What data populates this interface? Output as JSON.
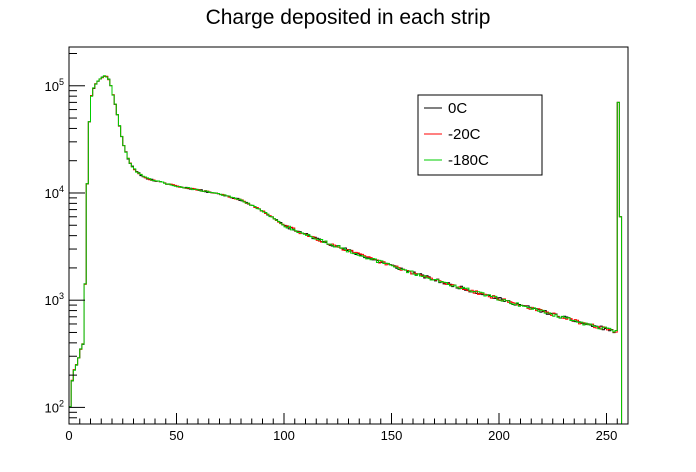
{
  "chart_data": {
    "type": "line",
    "title": "Charge deposited in each strip",
    "xlabel": "",
    "ylabel": "",
    "xlim": [
      0,
      260
    ],
    "ylim": [
      70,
      230000
    ],
    "yscale": "log",
    "grid": false,
    "legend_position": "top-right",
    "x_ticks": [
      0,
      50,
      100,
      150,
      200,
      250
    ],
    "y_ticks": [
      {
        "value": 100,
        "base": "10",
        "exp": "2"
      },
      {
        "value": 1000,
        "base": "10",
        "exp": "3"
      },
      {
        "value": 10000,
        "base": "10",
        "exp": "4"
      },
      {
        "value": 100000,
        "base": "10",
        "exp": "5"
      }
    ],
    "shape": {
      "bin_width": 1,
      "keypoints": [
        [
          0,
          70
        ],
        [
          1,
          150
        ],
        [
          2,
          210
        ],
        [
          3,
          240
        ],
        [
          4,
          260
        ],
        [
          5,
          320
        ],
        [
          6,
          380
        ],
        [
          7,
          400
        ],
        [
          8,
          5000
        ],
        [
          9,
          30000
        ],
        [
          10,
          72000
        ],
        [
          11,
          90000
        ],
        [
          12,
          100000
        ],
        [
          13,
          108000
        ],
        [
          14,
          113000
        ],
        [
          15,
          118000
        ],
        [
          16,
          122000
        ],
        [
          17,
          124000
        ],
        [
          18,
          120000
        ],
        [
          19,
          110000
        ],
        [
          20,
          92000
        ],
        [
          22,
          60000
        ],
        [
          25,
          30000
        ],
        [
          28,
          19500
        ],
        [
          31,
          16000
        ],
        [
          35,
          14000
        ],
        [
          40,
          13000
        ],
        [
          50,
          11600
        ],
        [
          60,
          10700
        ],
        [
          70,
          9800
        ],
        [
          80,
          8600
        ],
        [
          90,
          6800
        ],
        [
          100,
          5000
        ],
        [
          110,
          4100
        ],
        [
          120,
          3450
        ],
        [
          130,
          2900
        ],
        [
          140,
          2450
        ],
        [
          150,
          2100
        ],
        [
          160,
          1800
        ],
        [
          170,
          1550
        ],
        [
          180,
          1350
        ],
        [
          190,
          1180
        ],
        [
          200,
          1030
        ],
        [
          210,
          900
        ],
        [
          220,
          790
        ],
        [
          230,
          690
        ],
        [
          240,
          600
        ],
        [
          250,
          540
        ],
        [
          254,
          510
        ],
        [
          255,
          500
        ]
      ],
      "tail": [
        [
          255,
          70000
        ],
        [
          256,
          6000
        ],
        [
          257,
          70
        ]
      ]
    },
    "series": [
      {
        "name": "0C",
        "color": "#000000",
        "noise_seed": 11
      },
      {
        "name": "-20C",
        "color": "#ff0000",
        "noise_seed": 29
      },
      {
        "name": "-180C",
        "color": "#00cc00",
        "noise_seed": 47
      }
    ]
  }
}
